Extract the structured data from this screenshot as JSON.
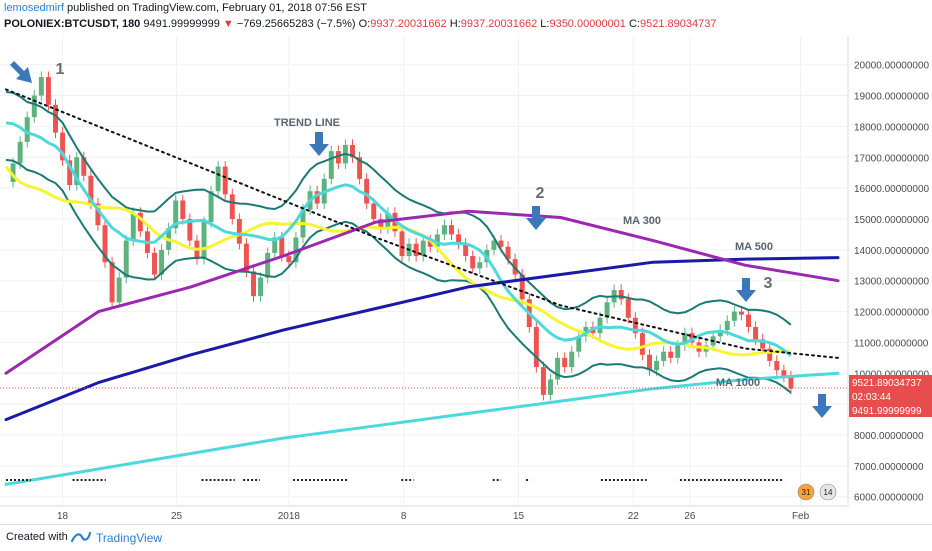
{
  "header": {
    "author": "lemosedmirf",
    "published": "published on TradingView.com, February 01, 2018 07:56 EST",
    "symbol": "POLONIEX:BTCUSDT, 180",
    "last": "9491.99999999",
    "change_arrow": "▼",
    "change": "−769.25665283 (−7.5%)",
    "o_label": "O:",
    "o_value": "9937.20031662",
    "h_label": "H:",
    "h_value": "9937.20031662",
    "l_label": "L:",
    "l_value": "9350.00000001",
    "c_label": "C:",
    "c_value": "9521.89034737"
  },
  "footer": {
    "created_with": "Created with",
    "brand": "TradingView"
  },
  "colors": {
    "up": "#5db37e",
    "down": "#ef5350",
    "bb": "#1b7a74",
    "ma_cyan": "#4dd8dc",
    "ma_yellow": "#f7f432",
    "ma_purple": "#9c27b0",
    "ma_blue": "#1a1aa8",
    "ma_black": "#111111",
    "arrow": "#3a78b8",
    "price_tag": "#e84d4d",
    "grid": "#eef1f3"
  },
  "icons": {
    "annotation_arrow": "arrow-icon",
    "brand": "tradingview-icon",
    "flag": "us-flag-icon"
  },
  "chart_data": {
    "type": "line",
    "title": "",
    "ylim": [
      5700,
      20800
    ],
    "y_ticks": [
      "20000.00000000",
      "19000.00000000",
      "18000.00000000",
      "17000.00000000",
      "16000.00000000",
      "15000.00000000",
      "14000.00000000",
      "13000.00000000",
      "12000.00000000",
      "11000.00000000",
      "10000.00000000",
      "9000.00000000",
      "8000.00000000",
      "7000.00000000",
      "6000.00000000"
    ],
    "x_ticks": [
      "18",
      "25",
      "2018",
      "8",
      "15",
      "22",
      "26",
      "Feb"
    ],
    "price_tags": {
      "close": "9521.89034737",
      "countdown": "02:03:44",
      "last": "9491.99999999"
    },
    "event_badges": [
      "31",
      "14"
    ],
    "annotations": {
      "labels": [
        "1",
        "2",
        "3"
      ],
      "text": [
        "TREND LINE",
        "MA 300",
        "MA 500",
        "MA 1000"
      ]
    },
    "series": [
      {
        "name": "MA 1000",
        "color": "#4dd8dc",
        "values": [
          6400,
          6900,
          7400,
          7900,
          8300,
          8700,
          9100,
          9500,
          9800,
          10000
        ]
      },
      {
        "name": "MA 500",
        "color": "#1a1aa8",
        "values": [
          8500,
          9700,
          10600,
          11400,
          12100,
          12800,
          13200,
          13600,
          13700,
          13750
        ]
      },
      {
        "name": "MA 300",
        "color": "#9c27b0",
        "values": [
          10000,
          12000,
          12800,
          13800,
          14900,
          15250,
          15050,
          14300,
          13500,
          13000
        ]
      },
      {
        "name": "TREND LINE",
        "color": "#111111",
        "values": [
          19200,
          18000,
          16800,
          15600,
          14400,
          13300,
          12200,
          11500,
          10800,
          10500
        ]
      }
    ],
    "candles": [
      16200,
      16800,
      17500,
      18300,
      19000,
      19600,
      18700,
      17800,
      16900,
      16100,
      17000,
      16400,
      15500,
      14800,
      13600,
      12300,
      13100,
      14300,
      15200,
      14600,
      13900,
      13200,
      14000,
      14700,
      15600,
      15000,
      14300,
      13700,
      14900,
      15900,
      16700,
      15800,
      15000,
      14200,
      13300,
      12500,
      13100,
      13900,
      14400,
      13800,
      13600,
      14400,
      15300,
      15900,
      15500,
      16300,
      17200,
      16800,
      17400,
      17000,
      16300,
      15500,
      15000,
      14700,
      15200,
      14600,
      13800,
      14200,
      13800,
      14300,
      14100,
      14500,
      14800,
      14500,
      14200,
      13800,
      13400,
      13600,
      14000,
      14300,
      14100,
      13700,
      13200,
      12400,
      11500,
      10200,
      9300,
      9800,
      10500,
      10200,
      10700,
      11200,
      11500,
      11300,
      11800,
      12300,
      12700,
      12400,
      11800,
      11300,
      10600,
      10100,
      10400,
      10700,
      10500,
      10900,
      11300,
      11000,
      10700,
      10900,
      11200,
      11400,
      11700,
      12000,
      11900,
      11500,
      11100,
      10800,
      10400,
      10100,
      9900,
      9500
    ]
  }
}
